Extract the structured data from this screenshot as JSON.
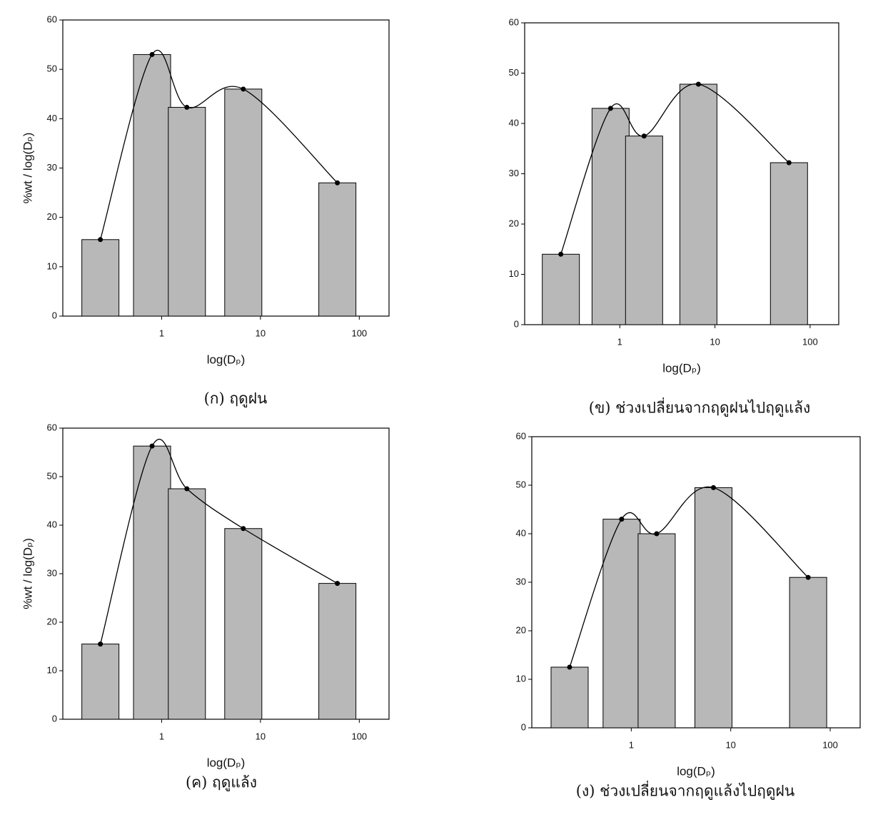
{
  "chart_data": [
    {
      "type": "bar",
      "caption": "(ก) ฤดูฝน",
      "xlabel": "log(Dₚ)",
      "ylabel": "%wt / log(Dₚ)",
      "x": [
        0.24,
        0.8,
        1.8,
        6.7,
        60
      ],
      "values": [
        15.5,
        53,
        42.3,
        46,
        27
      ],
      "xscale": "log",
      "xlim": [
        0.1,
        200
      ],
      "xticks": [
        1,
        10,
        100
      ],
      "ylim": [
        0,
        60
      ],
      "yticks": [
        0,
        10,
        20,
        30,
        40,
        50,
        60
      ],
      "color": "#b8b8b8",
      "line_color": "#000000"
    },
    {
      "type": "bar",
      "caption": "(ข) ช่วงเปลี่ยนจากฤดูฝนไปฤดูแล้ง",
      "xlabel": "log(Dₚ)",
      "x": [
        0.24,
        0.8,
        1.8,
        6.7,
        60
      ],
      "values": [
        14,
        43,
        37.5,
        47.8,
        32.2
      ],
      "xscale": "log",
      "xlim": [
        0.1,
        200
      ],
      "xticks": [
        1,
        10,
        100
      ],
      "ylim": [
        0,
        60
      ],
      "yticks": [
        0,
        10,
        20,
        30,
        40,
        50,
        60
      ],
      "color": "#b8b8b8",
      "line_color": "#000000"
    },
    {
      "type": "bar",
      "caption": "(ค) ฤดูแล้ง",
      "xlabel": "log(Dₚ)",
      "ylabel": "%wt / log(Dₚ)",
      "x": [
        0.24,
        0.8,
        1.8,
        6.7,
        60
      ],
      "values": [
        15.5,
        56.3,
        47.5,
        39.3,
        28
      ],
      "xscale": "log",
      "xlim": [
        0.1,
        200
      ],
      "xticks": [
        1,
        10,
        100
      ],
      "ylim": [
        0,
        60
      ],
      "yticks": [
        0,
        10,
        20,
        30,
        40,
        50,
        60
      ],
      "color": "#b8b8b8",
      "line_color": "#000000"
    },
    {
      "type": "bar",
      "caption": "(ง) ช่วงเปลี่ยนจากฤดูแล้งไปฤดูฝน",
      "xlabel": "log(Dₚ)",
      "x": [
        0.24,
        0.8,
        1.8,
        6.7,
        60
      ],
      "values": [
        12.5,
        43,
        40,
        49.5,
        31
      ],
      "xscale": "log",
      "xlim": [
        0.1,
        200
      ],
      "xticks": [
        1,
        10,
        100
      ],
      "ylim": [
        0,
        60
      ],
      "yticks": [
        0,
        10,
        20,
        30,
        40,
        50,
        60
      ],
      "color": "#b8b8b8",
      "line_color": "#000000"
    }
  ]
}
